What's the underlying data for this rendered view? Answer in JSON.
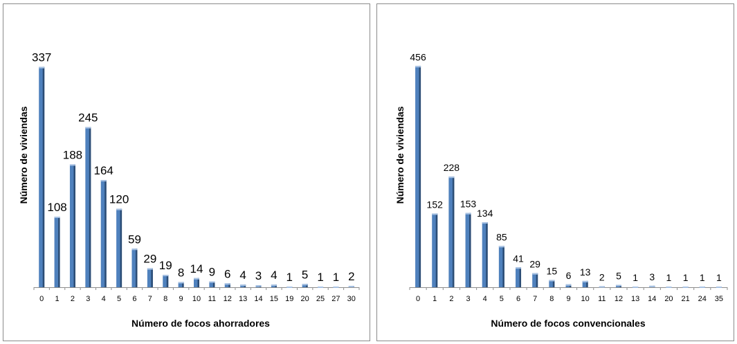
{
  "chart_data": [
    {
      "type": "bar",
      "xlabel": "Número de focos ahorradores",
      "ylabel": "Número de viviendas",
      "categories": [
        "0",
        "1",
        "2",
        "3",
        "4",
        "5",
        "6",
        "7",
        "8",
        "9",
        "10",
        "11",
        "12",
        "13",
        "14",
        "15",
        "19",
        "20",
        "25",
        "27",
        "30"
      ],
      "values": [
        337,
        108,
        188,
        245,
        164,
        120,
        59,
        29,
        19,
        8,
        14,
        9,
        6,
        4,
        3,
        4,
        1,
        5,
        1,
        1,
        2
      ],
      "ylim": [
        0,
        360
      ],
      "grid": false,
      "legend": "none",
      "bar_color": "#4f81bd"
    },
    {
      "type": "bar",
      "xlabel": "Número de focos convencionales",
      "ylabel": "Número de viviendas",
      "categories": [
        "0",
        "1",
        "2",
        "3",
        "4",
        "5",
        "6",
        "7",
        "8",
        "9",
        "10",
        "11",
        "12",
        "13",
        "14",
        "20",
        "21",
        "24",
        "35"
      ],
      "values": [
        456,
        152,
        228,
        153,
        134,
        85,
        41,
        29,
        15,
        6,
        13,
        2,
        5,
        1,
        3,
        1,
        1,
        1,
        1
      ],
      "ylim": [
        0,
        495
      ],
      "grid": false,
      "legend": "none",
      "bar_color": "#4f81bd"
    }
  ]
}
